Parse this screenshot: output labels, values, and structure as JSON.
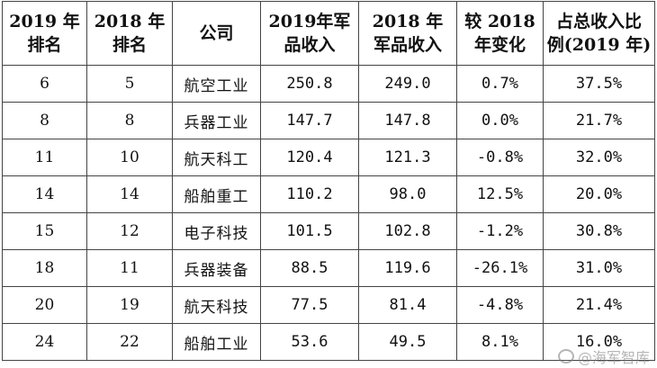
{
  "table": {
    "headers": [
      [
        "2019 年",
        "排名"
      ],
      [
        "2018 年",
        "排名"
      ],
      [
        "公司"
      ],
      [
        "2019年军",
        "品收入"
      ],
      [
        "2018 年",
        "军品收入"
      ],
      [
        "较 2018",
        "年变化"
      ],
      [
        "占总收入比",
        "例(2019 年)"
      ]
    ],
    "rows": [
      [
        "6",
        "5",
        "航空工业",
        "250.8",
        "249.0",
        "0.7%",
        "37.5%"
      ],
      [
        "8",
        "8",
        "兵器工业",
        "147.7",
        "147.8",
        "0.0%",
        "21.7%"
      ],
      [
        "11",
        "10",
        "航天科工",
        "120.4",
        "121.3",
        "-0.8%",
        "32.0%"
      ],
      [
        "14",
        "14",
        "船舶重工",
        "110.2",
        "98.0",
        "12.5%",
        "20.0%"
      ],
      [
        "15",
        "12",
        "电子科技",
        "101.5",
        "102.8",
        "-1.2%",
        "30.8%"
      ],
      [
        "18",
        "11",
        "兵器装备",
        "88.5",
        "119.6",
        "-26.1%",
        "31.0%"
      ],
      [
        "20",
        "19",
        "航天科技",
        "77.5",
        "81.4",
        "-4.8%",
        "21.4%"
      ],
      [
        "24",
        "22",
        "船舶工业",
        "53.6",
        "49.5",
        "8.1%",
        "16.0%"
      ]
    ]
  },
  "watermark": {
    "text": "@海军智库",
    "icon": "weibo-logo-icon"
  }
}
